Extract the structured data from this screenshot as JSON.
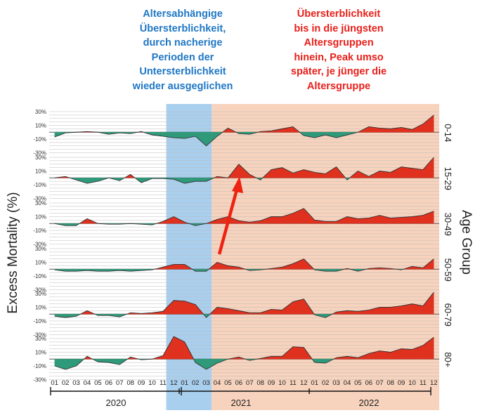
{
  "annotations": {
    "left": "Altersabhängige\nÜbersterblichkeit,\ndurch nacherige\nPerioden der\nUntersterblichkeit\nwieder ausgeglichen",
    "right": "Übersterblichkeit\nbis in die jüngsten\nAltersgruppen\nhinein, Peak umso\nspäter, je jünger die\nAltersgruppe"
  },
  "colors": {
    "positive": "#e0301e",
    "negative": "#2e9a7a",
    "highlight_blue": "#a9cfee",
    "highlight_orange": "#f7d3bd"
  },
  "chart_data": {
    "type": "area",
    "ylabel": "Excess Mortality (%)",
    "right_axis_label": "Age Group",
    "y_ticks": [
      "30%",
      "10%",
      "-10%",
      "-30%"
    ],
    "ylim": [
      -30,
      30
    ],
    "x_tick_labels": [
      "01",
      "02",
      "03",
      "04",
      "05",
      "06",
      "07",
      "08",
      "09",
      "10",
      "11",
      "12",
      "01",
      "02",
      "03",
      "04",
      "05",
      "06",
      "07",
      "08",
      "09",
      "10",
      "11",
      "12",
      "01",
      "02",
      "03",
      "04",
      "05",
      "06",
      "07",
      "08",
      "09",
      "10",
      "11",
      "12"
    ],
    "year_labels": [
      "2020",
      "2021",
      "2022"
    ],
    "highlight_blue_months": [
      11,
      15
    ],
    "highlight_orange_months": [
      15,
      36
    ],
    "series": [
      {
        "name": "0-14",
        "values": [
          -7,
          -1,
          0,
          1,
          0,
          -3,
          -1,
          -2,
          1,
          -4,
          -6,
          -8,
          -9,
          -6,
          -20,
          -6,
          6,
          -2,
          -3,
          1,
          2,
          5,
          8,
          -5,
          -8,
          -4,
          -8,
          -4,
          0,
          8,
          6,
          5,
          7,
          4,
          12,
          25
        ]
      },
      {
        "name": "15-29",
        "values": [
          0,
          2,
          -3,
          -8,
          -5,
          0,
          -4,
          5,
          -7,
          -1,
          -1,
          -2,
          -8,
          -5,
          -5,
          2,
          0,
          20,
          5,
          -3,
          12,
          15,
          7,
          12,
          8,
          6,
          16,
          -3,
          10,
          2,
          10,
          8,
          16,
          14,
          12,
          30
        ]
      },
      {
        "name": "30-49",
        "values": [
          0,
          -3,
          -3,
          7,
          0,
          -1,
          -1,
          0,
          -1,
          -2,
          3,
          10,
          2,
          -3,
          0,
          6,
          10,
          4,
          2,
          4,
          10,
          10,
          15,
          22,
          5,
          3,
          3,
          10,
          7,
          8,
          12,
          8,
          9,
          10,
          12,
          18
        ]
      },
      {
        "name": "50-59",
        "values": [
          -1,
          -3,
          -3,
          -2,
          -3,
          -3,
          -2,
          -3,
          -2,
          -1,
          3,
          7,
          7,
          -3,
          -3,
          10,
          5,
          3,
          -2,
          -1,
          1,
          3,
          8,
          15,
          -1,
          -3,
          -3,
          1,
          -3,
          1,
          2,
          1,
          -1,
          4,
          2,
          15
        ]
      },
      {
        "name": "60-79",
        "values": [
          -3,
          -5,
          -3,
          5,
          -2,
          -2,
          -4,
          2,
          1,
          2,
          4,
          20,
          19,
          14,
          -5,
          10,
          8,
          5,
          2,
          2,
          7,
          6,
          18,
          22,
          -1,
          -5,
          3,
          5,
          4,
          6,
          10,
          10,
          12,
          15,
          12,
          32
        ]
      },
      {
        "name": "80+",
        "values": [
          -10,
          -15,
          -10,
          4,
          -4,
          -5,
          -8,
          3,
          -1,
          0,
          5,
          33,
          25,
          -5,
          -15,
          -6,
          0,
          3,
          -2,
          1,
          4,
          4,
          18,
          17,
          -5,
          -6,
          2,
          4,
          2,
          8,
          12,
          10,
          15,
          14,
          20,
          32
        ]
      }
    ]
  }
}
